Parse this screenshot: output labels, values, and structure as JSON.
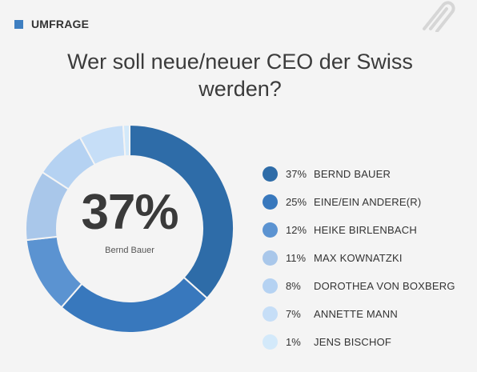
{
  "header": {
    "label": "UMFRAGE",
    "accent": "#3f7fc1",
    "icon": "paperclip-icon"
  },
  "question": "Wer soll neue/neuer CEO der Swiss werden?",
  "center": {
    "percent": "37%",
    "name": "Bernd Bauer"
  },
  "legend": [
    {
      "pct": "37%",
      "name": "BERND BAUER"
    },
    {
      "pct": "25%",
      "name": "EINE/EIN ANDERE(R)"
    },
    {
      "pct": "12%",
      "name": "HEIKE BIRLENBACH"
    },
    {
      "pct": "11%",
      "name": "MAX KOWNATZKI"
    },
    {
      "pct": "8%",
      "name": "DOROTHEA VON BOXBERG"
    },
    {
      "pct": "7%",
      "name": "ANNETTE MANN"
    },
    {
      "pct": "1%",
      "name": "JENS BISCHOF"
    }
  ],
  "chart_data": {
    "type": "pie",
    "categories": [
      "Bernd Bauer",
      "Eine/ein Andere(r)",
      "Heike Birlenbach",
      "Max Kownatzki",
      "Dorothea von Boxberg",
      "Annette Mann",
      "Jens Bischof"
    ],
    "values": [
      37,
      25,
      12,
      11,
      8,
      7,
      1
    ],
    "colors": [
      "#2e6ca8",
      "#3878bd",
      "#5b93d1",
      "#a9c7ea",
      "#b5d2f2",
      "#c6def7",
      "#d3e9fa"
    ]
  }
}
